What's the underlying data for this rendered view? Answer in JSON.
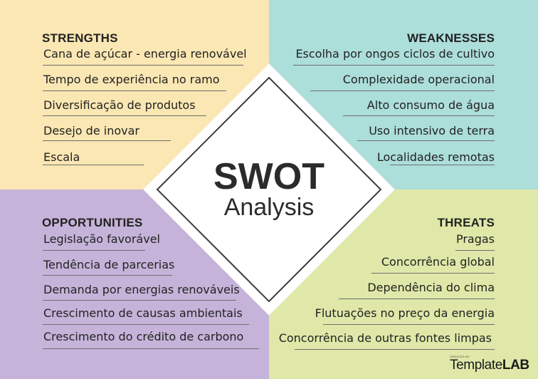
{
  "strengths": {
    "heading": "STRENGTHS",
    "items": [
      "Cana de açúcar - energia renovável",
      "Tempo de experiência no ramo",
      "Diversificação de produtos",
      "Desejo de inovar",
      "Escala"
    ]
  },
  "weaknesses": {
    "heading": "WEAKNESSES",
    "items": [
      "Escolha por ongos ciclos de cultivo",
      "Complexidade operacional",
      "Alto consumo de água",
      "Uso intensivo de terra",
      "Localidades remotas"
    ]
  },
  "opportunities": {
    "heading": "OPPORTUNITIES",
    "items": [
      "Legislação favorável",
      "Tendência de parcerias",
      "Demanda por energias renováveis",
      "Crescimento de causas ambientais",
      "Crescimento do crédito de carbono"
    ]
  },
  "threats": {
    "heading": "THREATS",
    "items": [
      "Pragas",
      "Concorrência global",
      "Dependência do clima",
      "Flutuações no preço da energia",
      "Concorrência de outras fontes limpas"
    ]
  },
  "center": {
    "title": "SWOT",
    "subtitle": "Analysis"
  },
  "logo": {
    "small_text": "CREATED BY",
    "brand_light": "Template",
    "brand_bold": "LAB"
  },
  "colors": {
    "strengths_bg": "#fbe7b3",
    "weaknesses_bg": "#acdeda",
    "opportunities_bg": "#c6b3d9",
    "threats_bg": "#dfe8a8"
  }
}
